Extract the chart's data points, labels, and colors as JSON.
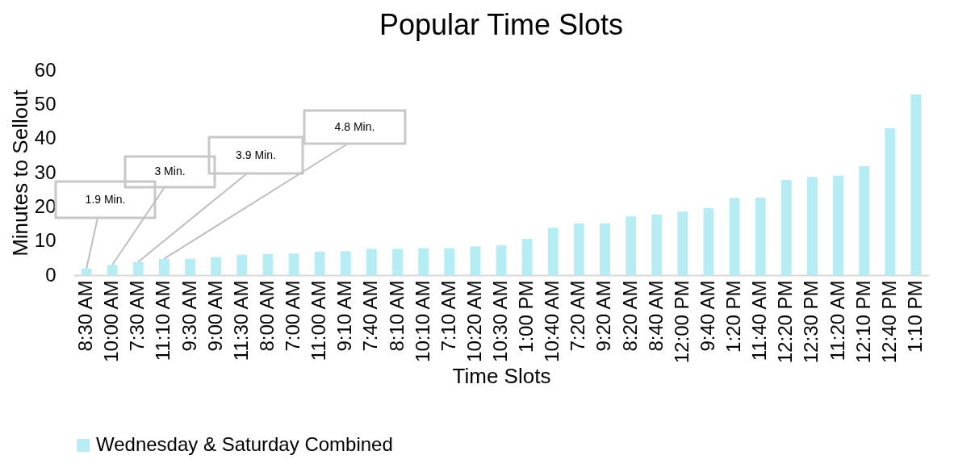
{
  "chart_data": {
    "type": "bar",
    "title": "Popular Time Slots",
    "xlabel": "Time Slots",
    "ylabel": "Minutes to Sellout",
    "categories": [
      "8:30 AM",
      "10:00 AM",
      "7:30 AM",
      "11:10 AM",
      "9:30 AM",
      "9:00 AM",
      "11:30 AM",
      "8:00 AM",
      "7:00 AM",
      "11:00 AM",
      "9:10 AM",
      "7:40 AM",
      "8:10 AM",
      "10:10 AM",
      "7:10 AM",
      "10:20 AM",
      "10:30 AM",
      "1:00 PM",
      "10:40 AM",
      "7:20 AM",
      "9:20 AM",
      "8:20 AM",
      "8:40 AM",
      "12:00 PM",
      "9:40 AM",
      "1:20 PM",
      "11:40 AM",
      "12:20 PM",
      "12:30 PM",
      "11:20 AM",
      "12:10 PM",
      "12:40 PM",
      "1:10 PM"
    ],
    "series": [
      {
        "name": "Wednesday & Saturday Combined",
        "color": "#b6ecf3",
        "values": [
          1.9,
          3,
          3.9,
          4.8,
          4.8,
          5.3,
          6,
          6.2,
          6.3,
          6.9,
          7,
          7.7,
          7.7,
          7.9,
          7.9,
          8.4,
          8.7,
          10.6,
          13.9,
          15.1,
          15.2,
          17.2,
          17.7,
          18.6,
          19.6,
          22.6,
          22.7,
          27.9,
          28.7,
          29.1,
          31.9,
          43,
          52.9
        ]
      }
    ],
    "ylim": [
      0,
      60
    ],
    "yticks": [
      0,
      10,
      20,
      30,
      40,
      50,
      60
    ],
    "grid": false,
    "legend": "bottom",
    "annotations": [
      {
        "text": "1.9 Min.",
        "x": "8:30 AM",
        "y": 1.9
      },
      {
        "text": "3 Min.",
        "x": "10:00 AM",
        "y": 3
      },
      {
        "text": "3.9 Min.",
        "x": "7:30 AM",
        "y": 3.9
      },
      {
        "text": "4.8 Min.",
        "x": "11:10 AM",
        "y": 4.8
      }
    ]
  }
}
